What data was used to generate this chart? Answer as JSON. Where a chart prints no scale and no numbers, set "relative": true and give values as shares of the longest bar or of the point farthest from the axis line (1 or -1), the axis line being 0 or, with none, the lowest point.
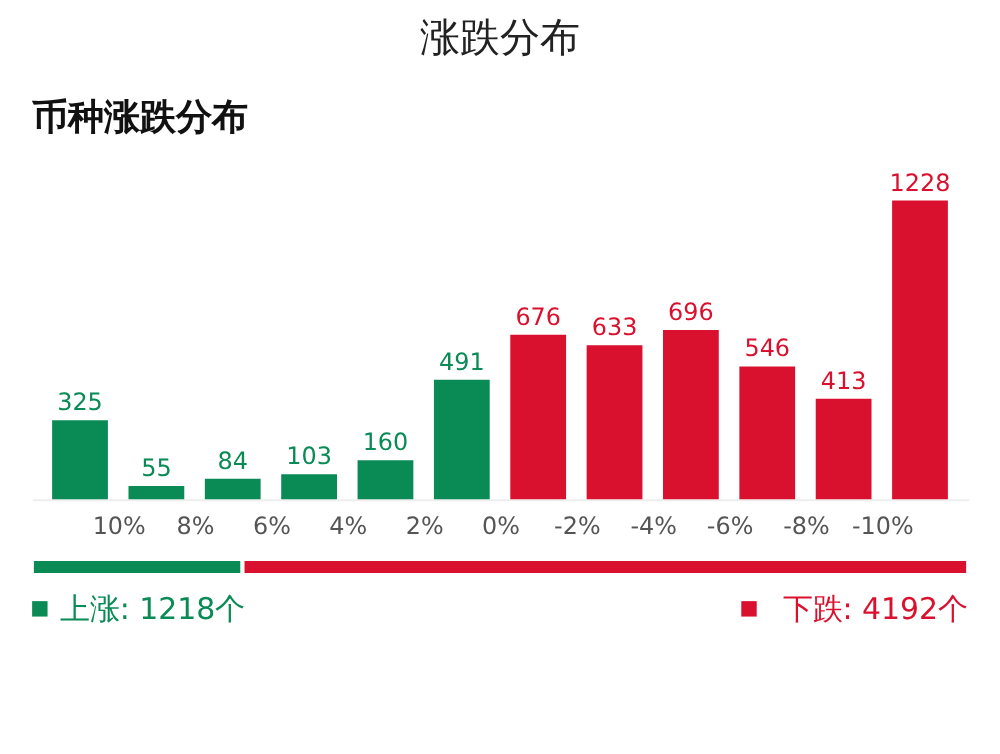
{
  "chart_data": [
    {
      "type": "bar",
      "title": "涨跌分布",
      "subtitle": "币种涨跌分布",
      "x": [
        11,
        9,
        7,
        5,
        3,
        1,
        -1,
        -3,
        -5,
        -7,
        -9,
        -11
      ],
      "xlim": [
        12,
        -12
      ],
      "xticks": [
        {
          "value": 10,
          "label": "10%"
        },
        {
          "value": 8,
          "label": "8%"
        },
        {
          "value": 6,
          "label": "6%"
        },
        {
          "value": 4,
          "label": "4%"
        },
        {
          "value": 2,
          "label": "2%"
        },
        {
          "value": 0,
          "label": "0%"
        },
        {
          "value": -2,
          "label": "-2%"
        },
        {
          "value": -4,
          "label": "-4%"
        },
        {
          "value": -6,
          "label": "-6%"
        },
        {
          "value": -8,
          "label": "-8%"
        },
        {
          "value": -10,
          "label": "-10%"
        }
      ],
      "series": [
        {
          "color": "#0a8a55",
          "values": [
            325,
            55,
            84,
            103,
            160,
            491,
            null,
            null,
            null,
            null,
            null,
            null
          ]
        },
        {
          "color": "#d9112e",
          "values": [
            null,
            null,
            null,
            null,
            null,
            null,
            676,
            633,
            696,
            546,
            413,
            1228
          ]
        }
      ],
      "data_labels": true,
      "grid": false,
      "tick_labels": "x"
    },
    {
      "type": "bar",
      "orientation": "horizontal",
      "stacked": true,
      "relative": true,
      "categories": [
        null
      ],
      "series": [
        {
          "name": "上涨: 1218个",
          "color": "#0a8a55",
          "values": [
            0.225
          ]
        },
        {
          "name": "下跌: 4192个",
          "color": "#d9112e",
          "values": [
            0.775
          ]
        }
      ],
      "legend": "bottom"
    }
  ]
}
